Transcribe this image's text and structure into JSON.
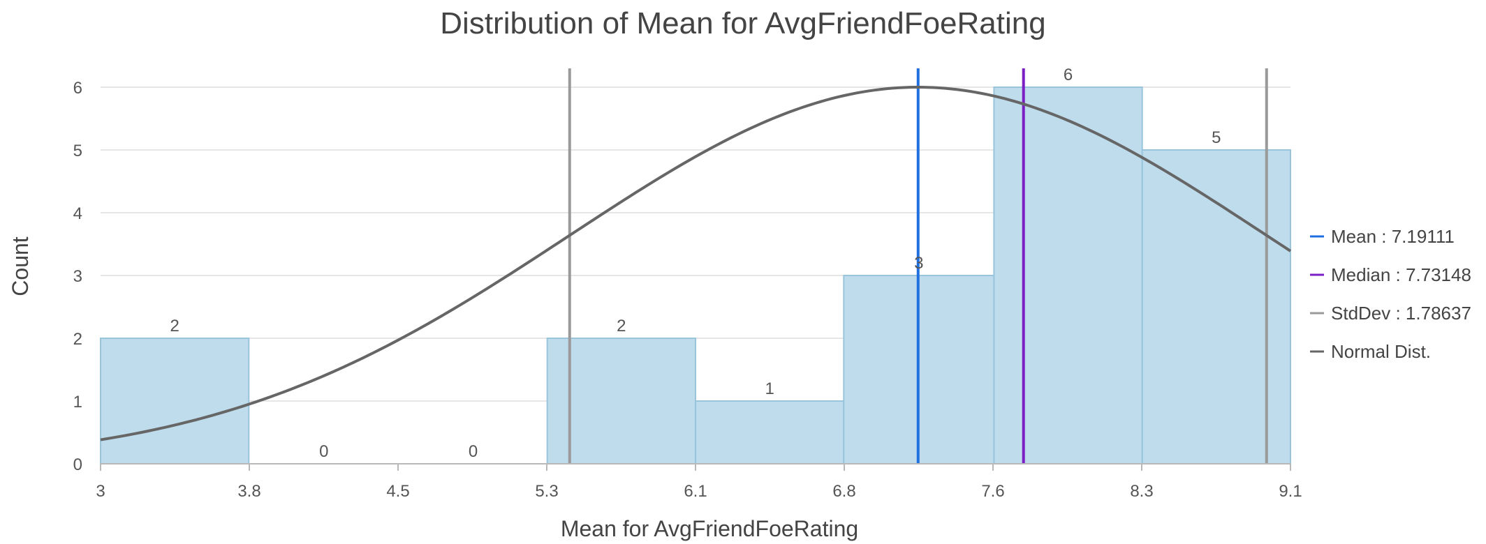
{
  "chart_data": {
    "type": "bar",
    "title": "Distribution of Mean for AvgFriendFoeRating",
    "xlabel": "Mean for AvgFriendFoeRating",
    "ylabel": "Count",
    "xlim": [
      3,
      9.1
    ],
    "ylim": [
      0,
      6
    ],
    "x_ticks": [
      "3",
      "3.8",
      "4.5",
      "5.3",
      "6.1",
      "6.8",
      "7.6",
      "8.3",
      "9.1"
    ],
    "y_ticks": [
      "0",
      "1",
      "2",
      "3",
      "4",
      "5",
      "6"
    ],
    "bins": [
      {
        "start": 3.0,
        "end": 3.76,
        "count": 2,
        "label": "2"
      },
      {
        "start": 3.76,
        "end": 4.53,
        "count": 0,
        "label": "0"
      },
      {
        "start": 4.53,
        "end": 5.29,
        "count": 0,
        "label": "0"
      },
      {
        "start": 5.29,
        "end": 6.05,
        "count": 2,
        "label": "2"
      },
      {
        "start": 6.05,
        "end": 6.81,
        "count": 1,
        "label": "1"
      },
      {
        "start": 6.81,
        "end": 7.58,
        "count": 3,
        "label": "3"
      },
      {
        "start": 7.58,
        "end": 8.34,
        "count": 6,
        "label": "6"
      },
      {
        "start": 8.34,
        "end": 9.1,
        "count": 5,
        "label": "5"
      }
    ],
    "lines": {
      "mean": 7.19111,
      "median": 7.73148,
      "stddev": 1.78637,
      "stddev_low": 5.40474,
      "stddev_high": 8.97748
    },
    "normal_peak_count": 6,
    "grid": true,
    "legend_position": "right",
    "legend": [
      {
        "key": "mean",
        "label": "Mean : 7.19111",
        "color": "#1f6fe0"
      },
      {
        "key": "median",
        "label": "Median : 7.73148",
        "color": "#7b1fc4"
      },
      {
        "key": "stddev",
        "label": "StdDev : 1.78637",
        "color": "#9a9a9a"
      },
      {
        "key": "normal",
        "label": "Normal Dist.",
        "color": "#666666"
      }
    ],
    "colors": {
      "bar_fill": "#bfdcec",
      "bar_stroke": "#98c4dc",
      "mean": "#1f6fe0",
      "median": "#7b1fc4",
      "stddev": "#9a9a9a",
      "normal": "#666666"
    }
  }
}
